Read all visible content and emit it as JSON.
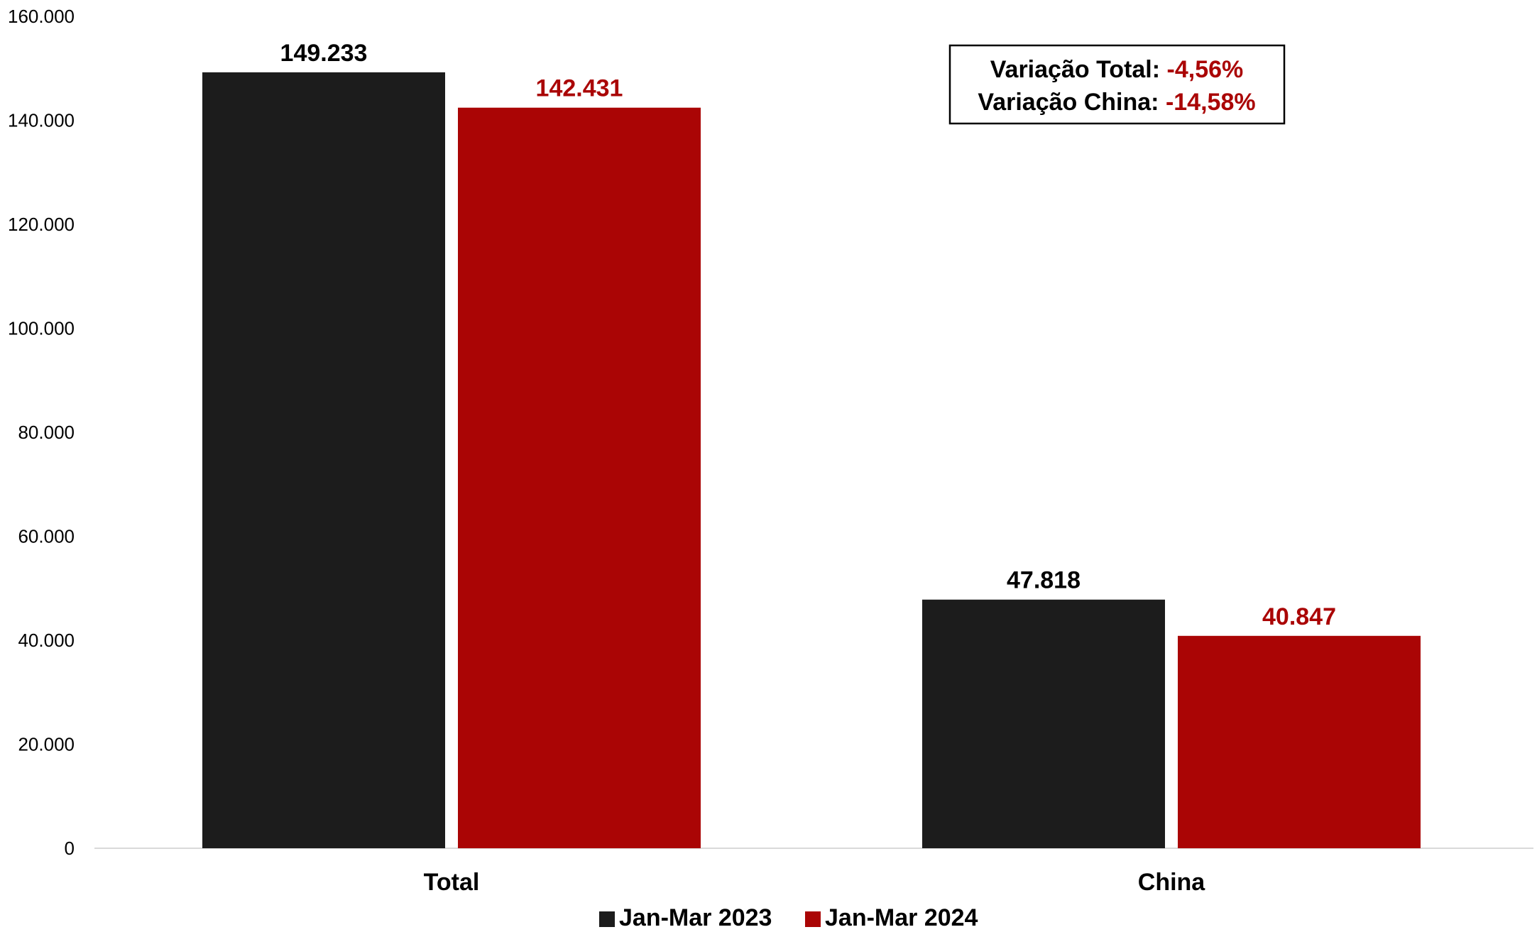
{
  "chart_data": {
    "type": "bar",
    "categories": [
      "Total",
      "China"
    ],
    "series": [
      {
        "name": "Jan-Mar 2023",
        "values": [
          149233,
          47818
        ],
        "labels": [
          "149.233",
          "47.818"
        ],
        "color": "#1c1c1c",
        "label_color": "#000000"
      },
      {
        "name": "Jan-Mar 2024",
        "values": [
          142431,
          40847
        ],
        "labels": [
          "142.431",
          "40.847"
        ],
        "color": "#aa0505",
        "label_color": "#aa0505"
      }
    ],
    "ylim": [
      0,
      160000
    ],
    "yticks": [
      0,
      20000,
      40000,
      60000,
      80000,
      100000,
      120000,
      140000,
      160000
    ],
    "ytick_labels": [
      "0",
      "20.000",
      "40.000",
      "60.000",
      "80.000",
      "100.000",
      "120.000",
      "140.000",
      "160.000"
    ],
    "xlabel": "",
    "ylabel": "",
    "title": "",
    "grid": false,
    "legend_position": "bottom-center",
    "annotation": {
      "lines": [
        {
          "label": "Variação Total: ",
          "value": "-4,56%"
        },
        {
          "label": "Variação China: ",
          "value": "-14,58%"
        }
      ],
      "label_color": "#000000",
      "value_color": "#aa0505"
    }
  }
}
